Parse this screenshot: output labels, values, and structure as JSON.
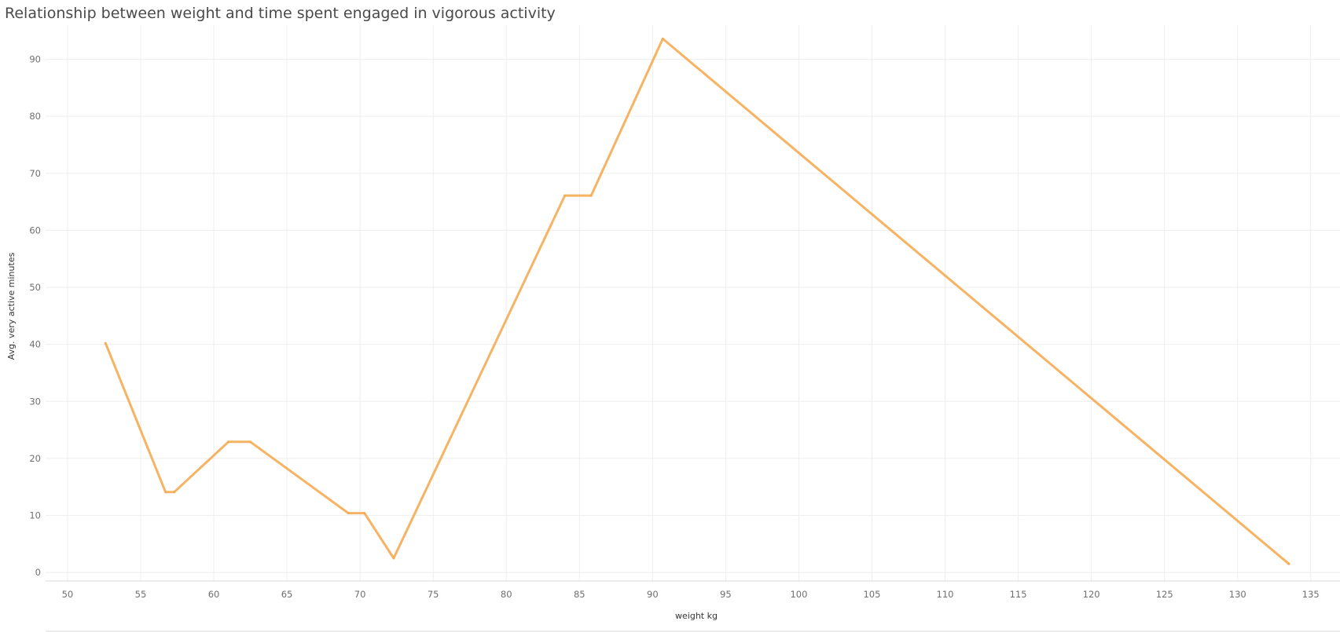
{
  "chart_data": {
    "type": "line",
    "title": "Relationship between weight and time spent engaged in vigorous activity",
    "xlabel": "weight kg",
    "ylabel": "Avg. very active minutes",
    "xlim": [
      48.5,
      137
    ],
    "ylim": [
      -1.5,
      96
    ],
    "xticks": [
      50,
      55,
      60,
      65,
      70,
      75,
      80,
      85,
      90,
      95,
      100,
      105,
      110,
      115,
      120,
      125,
      130,
      135
    ],
    "yticks": [
      0,
      10,
      20,
      30,
      40,
      50,
      60,
      70,
      80,
      90
    ],
    "grid": true,
    "series": [
      {
        "color": "#f6a94e",
        "x": [
          52.6,
          56.7,
          57.3,
          61.0,
          62.5,
          69.2,
          70.3,
          72.3,
          84.0,
          85.8,
          90.7,
          133.5
        ],
        "y": [
          40.2,
          14.1,
          14.1,
          22.9,
          22.9,
          10.4,
          10.4,
          2.5,
          66.1,
          66.1,
          93.6,
          1.5
        ]
      }
    ]
  }
}
